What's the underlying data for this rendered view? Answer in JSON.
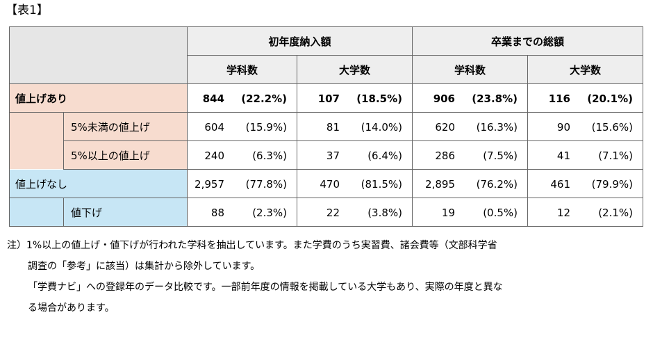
{
  "title": "【表1】",
  "header": {
    "groups": [
      "初年度納入額",
      "卒業までの総額"
    ],
    "sub": [
      "学科数",
      "大学数",
      "学科数",
      "大学数"
    ]
  },
  "rows": [
    {
      "label": "値上げあり",
      "level": 0,
      "color": "pink",
      "bold": true,
      "cells": [
        [
          "844",
          "(22.2%)"
        ],
        [
          "107",
          "(18.5%)"
        ],
        [
          "906",
          "(23.8%)"
        ],
        [
          "116",
          "(20.1%)"
        ]
      ]
    },
    {
      "label": "5%未満の値上げ",
      "level": 1,
      "color": "pink",
      "bold": false,
      "cells": [
        [
          "604",
          "(15.9%)"
        ],
        [
          "81",
          "(14.0%)"
        ],
        [
          "620",
          "(16.3%)"
        ],
        [
          "90",
          "(15.6%)"
        ]
      ]
    },
    {
      "label": "5%以上の値上げ",
      "level": 1,
      "color": "pink",
      "bold": false,
      "cells": [
        [
          "240",
          "(6.3%)"
        ],
        [
          "37",
          "(6.4%)"
        ],
        [
          "286",
          "(7.5%)"
        ],
        [
          "41",
          "(7.1%)"
        ]
      ]
    },
    {
      "label": "値上げなし",
      "level": 0,
      "color": "blue",
      "bold": false,
      "cells": [
        [
          "2,957",
          "(77.8%)"
        ],
        [
          "470",
          "(81.5%)"
        ],
        [
          "2,895",
          "(76.2%)"
        ],
        [
          "461",
          "(79.9%)"
        ]
      ]
    },
    {
      "label": "値下げ",
      "level": 1,
      "color": "blue",
      "bold": false,
      "cells": [
        [
          "88",
          "(2.3%)"
        ],
        [
          "22",
          "(3.8%)"
        ],
        [
          "19",
          "(0.5%)"
        ],
        [
          "12",
          "(2.1%)"
        ]
      ]
    }
  ],
  "notes": [
    "注）1%以上の値上げ・値下げが行われた学科を抽出しています。また学費のうち実習費、諸会費等（文部科学省",
    "調査の「参考」に該当）は集計から除外しています。",
    "「学費ナビ」への登録年のデータ比較です。一部前年度の情報を掲載している大学もあり、実際の年度と異な",
    "る場合があります。"
  ]
}
